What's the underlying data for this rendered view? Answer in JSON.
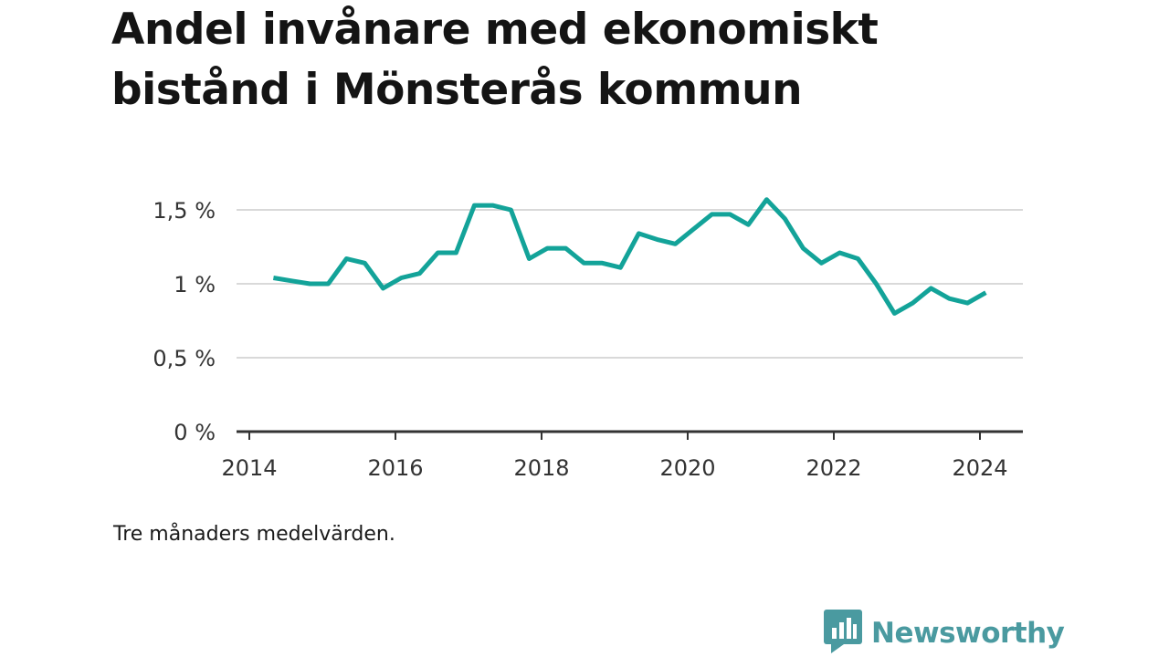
{
  "chart_data": {
    "type": "line",
    "title": "Andel invånare med ekonomiskt bistånd i Mönsterås kommun",
    "note": "Tre månaders medelvärden.",
    "y_ticks": [
      {
        "value": 0,
        "label": "0 %"
      },
      {
        "value": 0.5,
        "label": "0,5 %"
      },
      {
        "value": 1,
        "label": "1 %"
      },
      {
        "value": 1.5,
        "label": "1,5 %"
      }
    ],
    "x_ticks": [
      {
        "value": 2014,
        "label": "2014"
      },
      {
        "value": 2016,
        "label": "2016"
      },
      {
        "value": 2018,
        "label": "2018"
      },
      {
        "value": 2020,
        "label": "2020"
      },
      {
        "value": 2022,
        "label": "2022"
      },
      {
        "value": 2024,
        "label": "2024"
      }
    ],
    "xlim": [
      2014,
      2024.55
    ],
    "ylim": [
      0,
      1.5
    ],
    "grid": true,
    "color": "#13a399",
    "series": [
      {
        "x": [
          2014.33,
          2014.58,
          2014.83,
          2015.08,
          2015.33,
          2015.58,
          2015.83,
          2016.08,
          2016.33,
          2016.58,
          2016.83,
          2017.08,
          2017.33,
          2017.58,
          2017.83,
          2018.08,
          2018.33,
          2018.58,
          2018.83,
          2019.08,
          2019.33,
          2019.58,
          2019.83,
          2020.08,
          2020.33,
          2020.58,
          2020.83,
          2021.08,
          2021.33,
          2021.58,
          2021.83,
          2022.08,
          2022.33,
          2022.58,
          2022.83,
          2023.08,
          2023.33,
          2023.58,
          2023.83,
          2024.08
        ],
        "values": [
          1.04,
          1.02,
          1.0,
          1.0,
          1.17,
          1.14,
          0.97,
          1.04,
          1.07,
          1.21,
          1.21,
          1.53,
          1.53,
          1.5,
          1.17,
          1.24,
          1.24,
          1.14,
          1.14,
          1.11,
          1.34,
          1.3,
          1.27,
          1.37,
          1.47,
          1.47,
          1.4,
          1.57,
          1.44,
          1.24,
          1.14,
          1.21,
          1.17,
          1.0,
          0.8,
          0.87,
          0.97,
          0.9,
          0.87,
          0.94
        ]
      }
    ]
  },
  "brand": {
    "name": "Newsworthy",
    "color": "#4a9aa0",
    "icon": "bar-chart-speech-bubble-icon"
  }
}
